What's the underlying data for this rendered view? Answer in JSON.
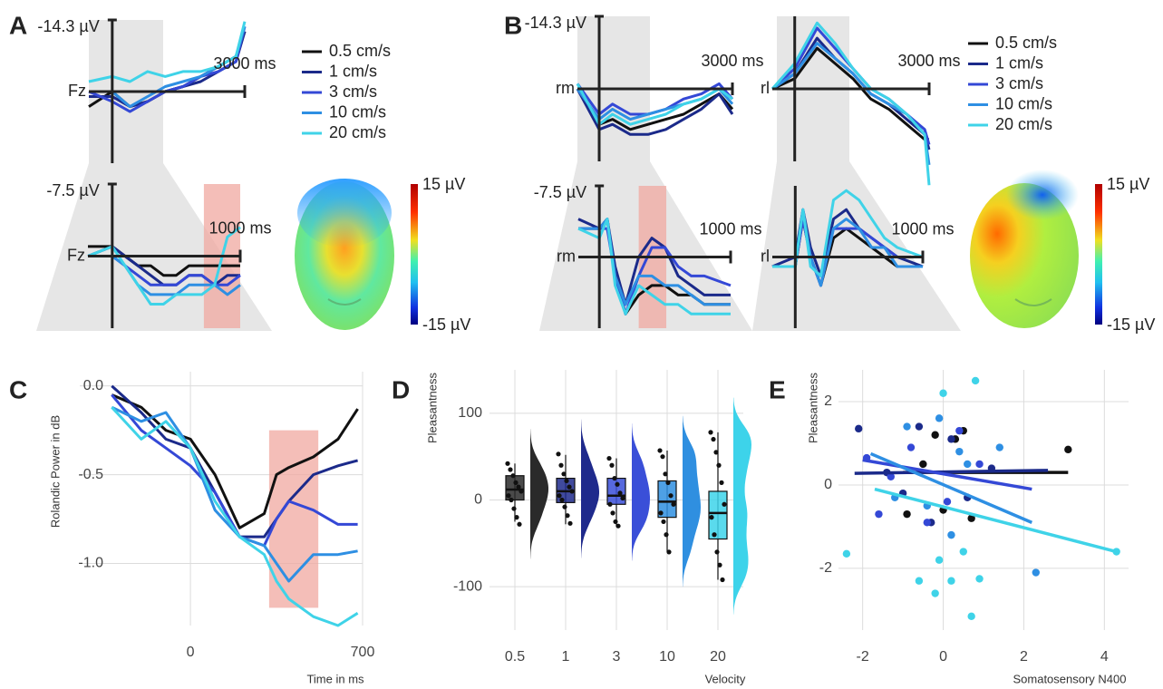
{
  "panels": [
    "A",
    "B",
    "C",
    "D",
    "E"
  ],
  "topomaps": [
    {
      "max": "15 µV",
      "min": "-15 µV"
    },
    {
      "max": "15 µV",
      "min": "-15 µV"
    }
  ],
  "chart_data": [
    {
      "type": "line",
      "label": "Fz",
      "xlim": [
        -530,
        3000
      ],
      "ylim": [
        14.3,
        -14.3
      ],
      "xticks": [
        {
          "value": 3000,
          "label": "3000 ms"
        }
      ],
      "yticks": [
        {
          "value": -14.3,
          "label": "-14.3 µV"
        }
      ],
      "x": [
        -530,
        0,
        400,
        800,
        1200,
        1600,
        2000,
        2400,
        2800,
        3000
      ],
      "series": [
        {
          "name": "0.5 cm/s",
          "color": "#111111",
          "values": [
            3,
            0,
            3,
            2,
            0,
            -1,
            -3,
            -5,
            -7,
            -12
          ]
        },
        {
          "name": "1 cm/s",
          "color": "#1b2a8a",
          "values": [
            1,
            1,
            3,
            2,
            0,
            -1,
            -2,
            -4,
            -6,
            -12
          ]
        },
        {
          "name": "3 cm/s",
          "color": "#3448d6",
          "values": [
            0,
            2,
            4,
            2,
            0,
            -1,
            -3,
            -4,
            -6,
            -13
          ]
        },
        {
          "name": "10 cm/s",
          "color": "#2e8fe3",
          "values": [
            0,
            0,
            3,
            1,
            -1,
            -2,
            -3,
            -5,
            -7,
            -13
          ]
        },
        {
          "name": "20 cm/s",
          "color": "#3fd3e8",
          "values": [
            -2,
            -3,
            -2,
            -4,
            -3,
            -4,
            -4,
            -5,
            -7,
            -14
          ]
        }
      ]
    },
    {
      "type": "line",
      "label": "Fz",
      "xlim": [
        -190,
        1000
      ],
      "ylim": [
        7.5,
        -7.5
      ],
      "xticks": [
        {
          "value": 1000,
          "label": "1000 ms"
        }
      ],
      "yticks": [
        {
          "value": -7.5,
          "label": "-7.5 µV"
        }
      ],
      "highlight": {
        "x": [
          716,
          1000
        ]
      },
      "x": [
        -190,
        0,
        100,
        200,
        300,
        400,
        500,
        600,
        700,
        800,
        900,
        1000
      ],
      "series": [
        {
          "color": "#111111",
          "values": [
            -1,
            -1,
            0,
            1,
            1,
            2,
            2,
            1,
            1,
            1,
            1,
            1
          ]
        },
        {
          "color": "#1b2a8a",
          "values": [
            0,
            -1,
            0,
            1,
            2,
            3,
            3,
            2,
            2,
            3,
            2,
            2
          ]
        },
        {
          "color": "#3448d6",
          "values": [
            0,
            0,
            1,
            2,
            3,
            3,
            3,
            2,
            2,
            3,
            3,
            2
          ]
        },
        {
          "color": "#2e8fe3",
          "values": [
            0,
            0,
            1,
            3,
            4,
            4,
            4,
            3,
            3,
            3,
            4,
            3
          ]
        },
        {
          "color": "#3fd3e8",
          "values": [
            0,
            -1,
            1,
            3,
            5,
            5,
            4,
            4,
            4,
            3,
            -2,
            -3
          ]
        }
      ]
    },
    {
      "type": "line",
      "label": "rm",
      "xlim": [
        -490,
        3000
      ],
      "ylim": [
        14.3,
        -14.3
      ],
      "xticks": [
        {
          "value": 3000,
          "label": "3000 ms"
        }
      ],
      "yticks": [
        {
          "value": -14.3,
          "label": "-14.3 µV"
        }
      ],
      "x": [
        -490,
        0,
        300,
        700,
        1100,
        1500,
        1900,
        2300,
        2700,
        3000
      ],
      "series": [
        {
          "color": "#111111",
          "values": [
            0,
            7,
            6,
            8,
            7,
            6,
            5,
            3,
            1,
            4
          ]
        },
        {
          "color": "#1b2a8a",
          "values": [
            0,
            8,
            7,
            9,
            9,
            8,
            6,
            4,
            1,
            5
          ]
        },
        {
          "color": "#3448d6",
          "values": [
            -1,
            5,
            3,
            5,
            5,
            4,
            2,
            1,
            -1,
            2
          ]
        },
        {
          "color": "#2e8fe3",
          "values": [
            0,
            6,
            4,
            6,
            5,
            4,
            3,
            2,
            0,
            3
          ]
        },
        {
          "color": "#3fd3e8",
          "values": [
            -1,
            7,
            5,
            7,
            6,
            5,
            3,
            2,
            0,
            2
          ]
        }
      ]
    },
    {
      "type": "line",
      "label": "rl",
      "xlim": [
        -500,
        3000
      ],
      "ylim": [
        14.3,
        -14.3
      ],
      "xticks": [
        {
          "value": 3000,
          "label": "3000 ms"
        }
      ],
      "x": [
        -500,
        0,
        500,
        900,
        1300,
        1700,
        2100,
        2500,
        2900,
        3000
      ],
      "series": [
        {
          "name": "0.5 cm/s",
          "color": "#111111",
          "values": [
            0,
            -2,
            -8,
            -5,
            -2,
            2,
            4,
            7,
            10,
            10
          ]
        },
        {
          "name": "1 cm/s",
          "color": "#1b2a8a",
          "values": [
            0,
            -3,
            -10,
            -6,
            -3,
            1,
            3,
            6,
            9,
            12
          ]
        },
        {
          "name": "3 cm/s",
          "color": "#3448d6",
          "values": [
            0,
            -4,
            -12,
            -8,
            -4,
            0,
            2,
            5,
            8,
            11
          ]
        },
        {
          "name": "10 cm/s",
          "color": "#2e8fe3",
          "values": [
            0,
            -3,
            -9,
            -6,
            -3,
            1,
            3,
            5,
            9,
            15
          ]
        },
        {
          "name": "20 cm/s",
          "color": "#3fd3e8",
          "values": [
            0,
            -5,
            -13,
            -9,
            -4,
            0,
            2,
            5,
            9,
            19
          ]
        }
      ]
    },
    {
      "type": "line",
      "label": "rm",
      "xlim": [
        -160,
        1000
      ],
      "ylim": [
        7.5,
        -7.5
      ],
      "xticks": [
        {
          "value": 1000,
          "label": "1000 ms"
        }
      ],
      "yticks": [
        {
          "value": -7.5,
          "label": "-7.5 µV"
        }
      ],
      "highlight": {
        "x": [
          300,
          510
        ]
      },
      "x": [
        -160,
        0,
        60,
        120,
        200,
        300,
        400,
        500,
        600,
        700,
        800,
        1000
      ],
      "series": [
        {
          "color": "#111111",
          "values": [
            -3,
            -3,
            -4,
            2,
            6,
            4,
            3,
            3,
            4,
            4,
            5,
            5
          ]
        },
        {
          "color": "#1b2a8a",
          "values": [
            -4,
            -3,
            -4,
            1,
            5,
            0,
            -2,
            -1,
            2,
            3,
            4,
            4
          ]
        },
        {
          "color": "#3448d6",
          "values": [
            -3,
            -3,
            -3,
            2,
            6,
            2,
            -1,
            -1,
            1,
            2,
            2,
            3
          ]
        },
        {
          "color": "#2e8fe3",
          "values": [
            -3,
            -3,
            -4,
            2,
            5,
            2,
            2,
            3,
            3,
            4,
            5,
            5
          ]
        },
        {
          "color": "#3fd3e8",
          "values": [
            -3,
            -2,
            -4,
            3,
            6,
            3,
            4,
            5,
            5,
            6,
            6,
            6
          ]
        }
      ]
    },
    {
      "type": "line",
      "label": "rl",
      "xlim": [
        -180,
        1000
      ],
      "ylim": [
        7.5,
        -7.5
      ],
      "xticks": [
        {
          "value": 1000,
          "label": "1000 ms"
        }
      ],
      "x": [
        -180,
        0,
        60,
        120,
        200,
        300,
        400,
        500,
        600,
        700,
        800,
        1000
      ],
      "series": [
        {
          "color": "#111111",
          "values": [
            1,
            1,
            -4,
            0,
            3,
            -2,
            -3,
            -2,
            -1,
            0,
            1,
            1
          ]
        },
        {
          "color": "#1b2a8a",
          "values": [
            1,
            0,
            -5,
            -1,
            2,
            -4,
            -5,
            -3,
            -2,
            -1,
            0,
            1
          ]
        },
        {
          "color": "#3448d6",
          "values": [
            1,
            1,
            -4,
            0,
            3,
            -3,
            -3,
            -3,
            -2,
            -1,
            0,
            0
          ]
        },
        {
          "color": "#2e8fe3",
          "values": [
            1,
            1,
            -5,
            0,
            3,
            -3,
            -4,
            -3,
            -1,
            -1,
            1,
            1
          ]
        },
        {
          "color": "#3fd3e8",
          "values": [
            1,
            1,
            -5,
            1,
            2,
            -6,
            -7,
            -6,
            -4,
            -2,
            -1,
            0
          ]
        }
      ]
    },
    {
      "type": "line",
      "ylabel": "Rolandic Power in dB",
      "xlabel": "Time in ms",
      "grid": true,
      "xlim": [
        -450,
        700
      ],
      "ylim": [
        -1.35,
        0.08
      ],
      "xticks": [
        0,
        700
      ],
      "yticks": [
        {
          "value": 0,
          "label": "0.0"
        },
        -0.5,
        {
          "value": -1,
          "label": "-1.0"
        }
      ],
      "highlight": {
        "x": [
          320,
          520
        ],
        "y": [
          -0.25,
          -1.25
        ]
      },
      "x": [
        -320,
        -200,
        -100,
        0,
        100,
        200,
        300,
        350,
        400,
        500,
        600,
        680
      ],
      "series": [
        {
          "color": "#111111",
          "values": [
            -0.05,
            -0.12,
            -0.25,
            -0.3,
            -0.5,
            -0.8,
            -0.72,
            -0.5,
            -0.46,
            -0.4,
            -0.3,
            -0.13
          ]
        },
        {
          "color": "#1b2a8a",
          "values": [
            0,
            -0.15,
            -0.3,
            -0.35,
            -0.6,
            -0.85,
            -0.85,
            -0.75,
            -0.65,
            -0.5,
            -0.45,
            -0.42
          ]
        },
        {
          "color": "#3448d6",
          "values": [
            -0.05,
            -0.25,
            -0.35,
            -0.45,
            -0.6,
            -0.85,
            -0.9,
            -0.75,
            -0.65,
            -0.7,
            -0.78,
            -0.78
          ]
        },
        {
          "color": "#2e8fe3",
          "values": [
            -0.12,
            -0.2,
            -0.15,
            -0.35,
            -0.7,
            -0.85,
            -0.9,
            -1.0,
            -1.1,
            -0.95,
            -0.95,
            -0.93
          ]
        },
        {
          "color": "#3fd3e8",
          "values": [
            -0.12,
            -0.3,
            -0.2,
            -0.35,
            -0.65,
            -0.85,
            -0.95,
            -1.1,
            -1.2,
            -1.3,
            -1.35,
            -1.28
          ]
        }
      ]
    },
    {
      "type": "box",
      "ylabel": "Pleasantness",
      "xlabel": "Velocity",
      "grid": true,
      "ylim": [
        -150,
        150
      ],
      "yticks": [
        100,
        0,
        -100
      ],
      "categories": [
        "0.5",
        "1",
        "3",
        "10",
        "20"
      ],
      "colors": [
        "#2a2a2a",
        "#1f2a8c",
        "#3a4fd8",
        "#2f8fe0",
        "#3dd3ea"
      ],
      "boxes": [
        {
          "low": -25,
          "q1": 0,
          "median": 12,
          "q3": 28,
          "high": 42
        },
        {
          "low": -28,
          "q1": -3,
          "median": 10,
          "q3": 25,
          "high": 52
        },
        {
          "low": -30,
          "q1": -5,
          "median": 5,
          "q3": 25,
          "high": 48
        },
        {
          "low": -60,
          "q1": -20,
          "median": -2,
          "q3": 22,
          "high": 57
        },
        {
          "low": -92,
          "q1": -45,
          "median": -15,
          "q3": 10,
          "high": 78
        }
      ],
      "points": [
        [
          42,
          35,
          28,
          20,
          15,
          10,
          5,
          0,
          -10,
          -20,
          -28
        ],
        [
          53,
          40,
          30,
          22,
          15,
          10,
          5,
          0,
          -8,
          -18,
          -27
        ],
        [
          48,
          40,
          25,
          18,
          8,
          2,
          -5,
          -15,
          -25,
          -30
        ],
        [
          57,
          50,
          30,
          20,
          5,
          -5,
          -15,
          -25,
          -40,
          -60
        ],
        [
          78,
          70,
          55,
          40,
          20,
          -5,
          -20,
          -40,
          -60,
          -75,
          -92
        ]
      ]
    },
    {
      "type": "scatter",
      "ylabel": "Pleasantness",
      "xlabel": "Somatosensory N400",
      "grid": true,
      "xlim": [
        -2.6,
        4.6
      ],
      "ylim": [
        -3.48,
        2.76
      ],
      "xticks": [
        -2,
        0,
        2,
        4
      ],
      "yticks": [
        2,
        0,
        -2
      ],
      "series": [
        {
          "color": "#111111",
          "x": [
            -0.2,
            0.3,
            -0.9,
            0.5,
            3.1,
            -0.5,
            0.0,
            0.7
          ],
          "y": [
            1.2,
            1.1,
            -0.7,
            1.3,
            0.85,
            0.5,
            -0.6,
            -0.8
          ],
          "fit_x": [
            -1.0,
            3.1
          ],
          "fit_y": [
            0.3,
            0.3
          ]
        },
        {
          "color": "#1b2a8a",
          "x": [
            -2.1,
            -1.4,
            -0.6,
            0.2,
            -1.0,
            0.6,
            -0.3,
            1.2
          ],
          "y": [
            1.35,
            0.3,
            1.4,
            1.1,
            -0.2,
            -0.3,
            -0.9,
            0.4
          ],
          "fit_x": [
            -2.2,
            2.6
          ],
          "fit_y": [
            0.28,
            0.35
          ]
        },
        {
          "color": "#3448d6",
          "x": [
            -1.9,
            -1.3,
            -0.8,
            0.4,
            -0.4,
            0.9,
            -1.6,
            0.1
          ],
          "y": [
            0.65,
            0.2,
            0.9,
            1.3,
            -0.9,
            0.5,
            -0.7,
            -0.4
          ],
          "fit_x": [
            -2.0,
            2.2
          ],
          "fit_y": [
            0.6,
            -0.1
          ]
        },
        {
          "color": "#2e8fe3",
          "x": [
            -0.9,
            -0.1,
            0.4,
            -1.2,
            0.6,
            -0.4,
            1.4,
            2.3,
            0.2
          ],
          "y": [
            1.4,
            1.6,
            0.8,
            -0.3,
            0.5,
            -0.5,
            0.9,
            -2.1,
            -1.2
          ],
          "fit_x": [
            -1.8,
            2.2
          ],
          "fit_y": [
            0.75,
            -0.9
          ]
        },
        {
          "color": "#3fd3e8",
          "x": [
            -2.4,
            0.0,
            -0.1,
            0.8,
            -0.2,
            0.2,
            0.9,
            -0.6,
            0.7,
            4.3,
            0.5
          ],
          "y": [
            -1.65,
            2.2,
            -1.8,
            2.5,
            -2.6,
            -2.3,
            -2.25,
            -2.3,
            -3.15,
            -1.6,
            -1.6
          ],
          "fit_x": [
            -1.7,
            4.3
          ],
          "fit_y": [
            -0.1,
            -1.6
          ]
        }
      ]
    }
  ]
}
